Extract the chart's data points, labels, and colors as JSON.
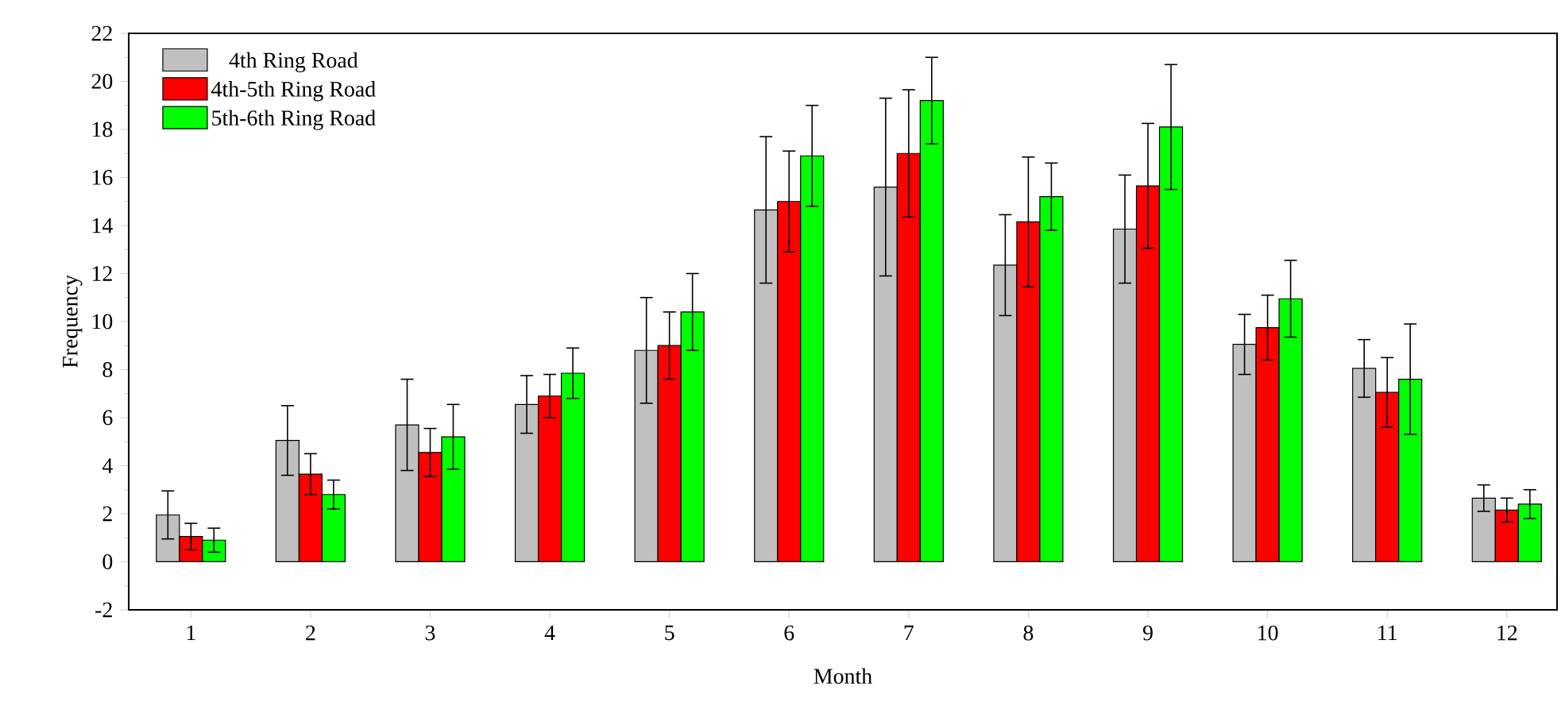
{
  "chart_data": {
    "type": "bar",
    "xlabel": "Month",
    "ylabel": "Frequency",
    "categories": [
      "1",
      "2",
      "3",
      "4",
      "5",
      "6",
      "7",
      "8",
      "9",
      "10",
      "11",
      "12"
    ],
    "series": [
      {
        "name": "4th Ring Road",
        "color": "#c0c0c0",
        "values": [
          1.95,
          5.05,
          5.7,
          6.55,
          8.8,
          14.65,
          15.6,
          12.35,
          13.85,
          9.05,
          8.05,
          2.65
        ],
        "errors": [
          1.0,
          1.45,
          1.9,
          1.2,
          2.2,
          3.05,
          3.7,
          2.1,
          2.25,
          1.25,
          1.2,
          0.55
        ]
      },
      {
        "name": "4th-5th Ring Road",
        "color": "#ff0000",
        "values": [
          1.05,
          3.65,
          4.55,
          6.9,
          9.0,
          15.0,
          17.0,
          14.15,
          15.65,
          9.75,
          7.05,
          2.15
        ],
        "errors": [
          0.55,
          0.85,
          1.0,
          0.9,
          1.4,
          2.1,
          2.65,
          2.7,
          2.6,
          1.35,
          1.45,
          0.5
        ]
      },
      {
        "name": "5th-6th Ring Road",
        "color": "#00ff00",
        "values": [
          0.9,
          2.8,
          5.2,
          7.85,
          10.4,
          16.9,
          19.2,
          15.2,
          18.1,
          10.95,
          7.6,
          2.4
        ],
        "errors": [
          0.5,
          0.6,
          1.35,
          1.05,
          1.6,
          2.1,
          1.8,
          1.4,
          2.6,
          1.6,
          2.3,
          0.6
        ]
      }
    ],
    "ylim": [
      -2,
      22
    ],
    "yticks": [
      -2,
      0,
      2,
      4,
      6,
      8,
      10,
      12,
      14,
      16,
      18,
      20,
      22
    ],
    "grid": false,
    "legend": "top left"
  }
}
